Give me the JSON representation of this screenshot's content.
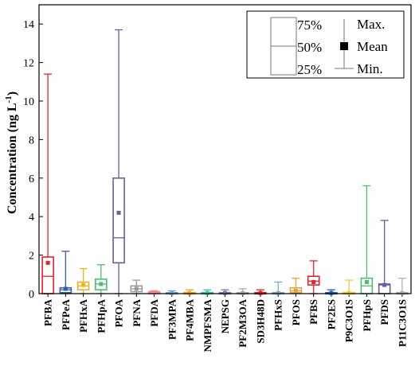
{
  "chart_data": {
    "type": "box",
    "ylabel": "Concentration (ng L",
    "ylabel_sup": "-1",
    "ylabel_close": ")",
    "ylim": [
      0,
      15
    ],
    "yticks": [
      0,
      2,
      4,
      6,
      8,
      10,
      12,
      14
    ],
    "grid": false,
    "legend": {
      "position": "top-right",
      "box_labels": [
        "75%",
        "50%",
        "25%"
      ],
      "whisker_labels": [
        "Max.",
        "Mean",
        "Min."
      ]
    },
    "categories": [
      "PFBA",
      "PFPeA",
      "PFHxA",
      "PFHpA",
      "PFOA",
      "PFNA",
      "PFDA",
      "PF3MPA",
      "PF4MBA",
      "NMPFSMA",
      "NEPSG",
      "PF2M3OA",
      "SD3H48D",
      "PFHxS",
      "PFOS",
      "PFBS",
      "PF2ES",
      "P9C3O1S",
      "PFHpS",
      "PFDS",
      "P11C3O1S"
    ],
    "colors": [
      "#e8212a",
      "#3a5faa",
      "#f2b21c",
      "#4cbf6a",
      "#6b5ca5",
      "#9a9a9a",
      "#ee8a8a",
      "#7aa3d6",
      "#f0a030",
      "#44c2a6",
      "#7a76ad",
      "#aaaaaa",
      "#e8212a",
      "#7aa8c8",
      "#e8a23a",
      "#e8212a",
      "#2a5fa8",
      "#f2c838",
      "#4cbf6a",
      "#6b5ca5",
      "#b0b0b0"
    ],
    "series": [
      {
        "name": "PFBA",
        "min": 0,
        "q1": 0,
        "median": 0.9,
        "q3": 1.9,
        "max": 11.4,
        "mean": 1.6
      },
      {
        "name": "PFPeA",
        "min": 0,
        "q1": 0.05,
        "median": 0.2,
        "q3": 0.3,
        "max": 2.2,
        "mean": 0.25
      },
      {
        "name": "PFHxA",
        "min": 0,
        "q1": 0.2,
        "median": 0.4,
        "q3": 0.6,
        "max": 1.3,
        "mean": 0.45
      },
      {
        "name": "PFHpA",
        "min": 0,
        "q1": 0.2,
        "median": 0.5,
        "q3": 0.75,
        "max": 1.5,
        "mean": 0.5
      },
      {
        "name": "PFOA",
        "min": 0,
        "q1": 1.6,
        "median": 2.9,
        "q3": 6.0,
        "max": 13.7,
        "mean": 4.2
      },
      {
        "name": "PFNA",
        "min": 0,
        "q1": 0.1,
        "median": 0.25,
        "q3": 0.4,
        "max": 0.7,
        "mean": 0.25
      },
      {
        "name": "PFDA",
        "min": 0,
        "q1": 0,
        "median": 0.05,
        "q3": 0.1,
        "max": 0.15,
        "mean": 0.05
      },
      {
        "name": "PF3MPA",
        "min": 0,
        "q1": 0,
        "median": 0.03,
        "q3": 0.05,
        "max": 0.15,
        "mean": 0.03
      },
      {
        "name": "PF4MBA",
        "min": 0,
        "q1": 0,
        "median": 0.03,
        "q3": 0.05,
        "max": 0.2,
        "mean": 0.03
      },
      {
        "name": "NMPFSMA",
        "min": 0,
        "q1": 0,
        "median": 0.03,
        "q3": 0.05,
        "max": 0.2,
        "mean": 0.03
      },
      {
        "name": "NEPSG",
        "min": 0,
        "q1": 0,
        "median": 0.03,
        "q3": 0.05,
        "max": 0.2,
        "mean": 0.03
      },
      {
        "name": "PF2M3OA",
        "min": 0,
        "q1": 0,
        "median": 0.03,
        "q3": 0.05,
        "max": 0.25,
        "mean": 0.03
      },
      {
        "name": "SD3H48D",
        "min": 0,
        "q1": 0,
        "median": 0.03,
        "q3": 0.05,
        "max": 0.2,
        "mean": 0.03
      },
      {
        "name": "PFHxS",
        "min": 0,
        "q1": 0,
        "median": 0.03,
        "q3": 0.05,
        "max": 0.6,
        "mean": 0.03
      },
      {
        "name": "PFOS",
        "min": 0,
        "q1": 0.05,
        "median": 0.15,
        "q3": 0.3,
        "max": 0.8,
        "mean": 0.15
      },
      {
        "name": "PFBS",
        "min": 0,
        "q1": 0.45,
        "median": 0.65,
        "q3": 0.9,
        "max": 1.7,
        "mean": 0.6
      },
      {
        "name": "PF2ES",
        "min": 0,
        "q1": 0,
        "median": 0.03,
        "q3": 0.05,
        "max": 0.2,
        "mean": 0.03
      },
      {
        "name": "P9C3O1S",
        "min": 0,
        "q1": 0,
        "median": 0.03,
        "q3": 0.05,
        "max": 0.7,
        "mean": 0.03
      },
      {
        "name": "PFHpS",
        "min": 0,
        "q1": 0,
        "median": 0.4,
        "q3": 0.8,
        "max": 5.6,
        "mean": 0.6
      },
      {
        "name": "PFDS",
        "min": 0,
        "q1": 0,
        "median": 0.45,
        "q3": 0.5,
        "max": 3.8,
        "mean": 0.45
      },
      {
        "name": "P11C3O1S",
        "min": 0,
        "q1": 0,
        "median": 0.03,
        "q3": 0.05,
        "max": 0.8,
        "mean": 0.03
      }
    ]
  }
}
